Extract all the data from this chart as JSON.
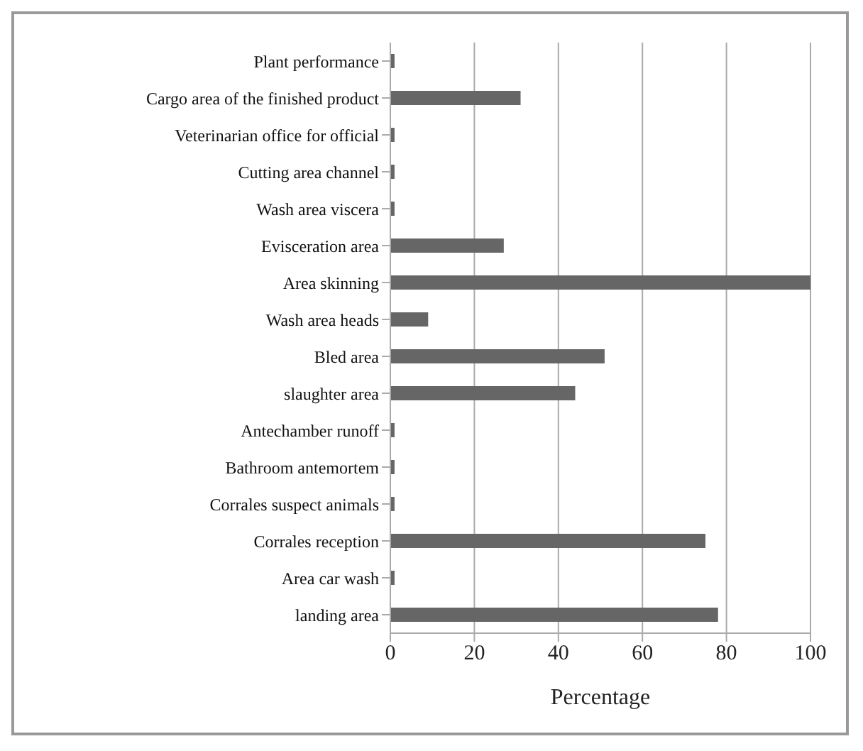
{
  "chart_data": {
    "type": "bar",
    "orientation": "horizontal",
    "xlabel": "Percentage",
    "categories": [
      "Plant performance",
      "Cargo area of the finished product",
      "Veterinarian office for official",
      "Cutting area channel",
      "Wash area viscera",
      "Evisceration area",
      "Area skinning",
      "Wash area heads",
      "Bled area",
      "slaughter area",
      "Antechamber runoff",
      "Bathroom antemortem",
      "Corrales suspect animals",
      "Corrales reception",
      "Area car wash",
      "landing area"
    ],
    "values": [
      1,
      31,
      1,
      1,
      1,
      27,
      100,
      9,
      51,
      44,
      1,
      1,
      1,
      75,
      1,
      78
    ],
    "color": "#666666",
    "xlim": [
      0,
      100
    ],
    "xticks": [
      0,
      20,
      40,
      60,
      80,
      100
    ],
    "grid": "x"
  }
}
